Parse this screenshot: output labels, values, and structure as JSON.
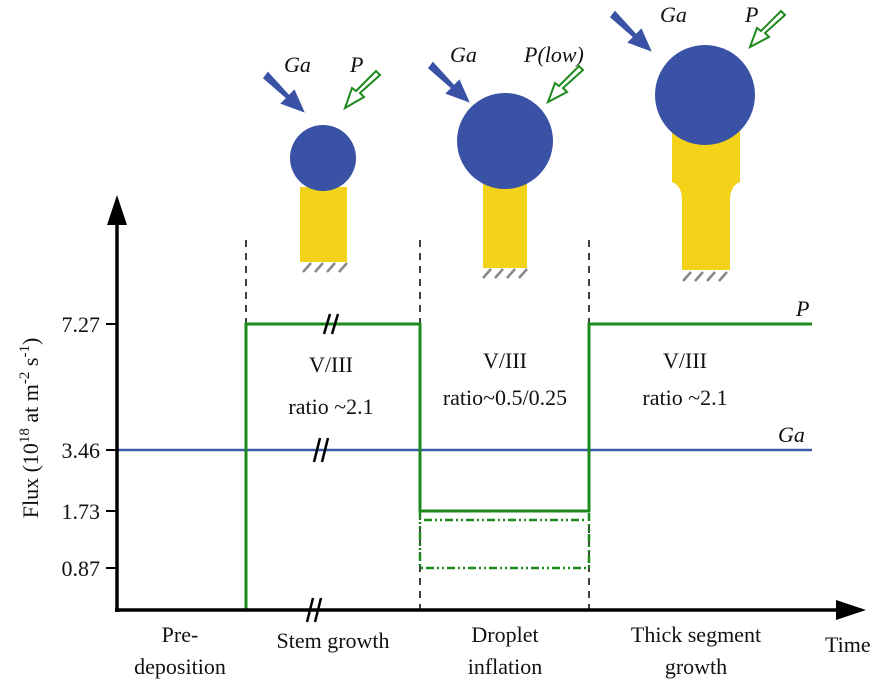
{
  "y_axis": {
    "label_parts": [
      "Flux (10",
      "18",
      " at m",
      "-2",
      " s",
      "-1",
      ")"
    ],
    "ticks": [
      "7.27",
      "3.46",
      "1.73",
      "0.87"
    ]
  },
  "x_axis": {
    "label": "Time"
  },
  "series_labels": {
    "p": "P",
    "ga": "Ga"
  },
  "phases": [
    {
      "lines": [
        "Pre-",
        "deposition"
      ]
    },
    {
      "lines": [
        "Stem growth"
      ],
      "ratio": [
        "V/III",
        "ratio ~2.1"
      ]
    },
    {
      "lines": [
        "Droplet",
        "inflation"
      ],
      "ratio": [
        "V/III",
        "ratio~0.5/0.25"
      ]
    },
    {
      "lines": [
        "Thick segment",
        "growth"
      ],
      "ratio": [
        "V/III",
        "ratio ~2.1"
      ]
    }
  ],
  "sketches": [
    {
      "ga": "Ga",
      "p": "P"
    },
    {
      "ga": "Ga",
      "p": "P(low)"
    },
    {
      "ga": "Ga",
      "p": "P"
    }
  ]
}
